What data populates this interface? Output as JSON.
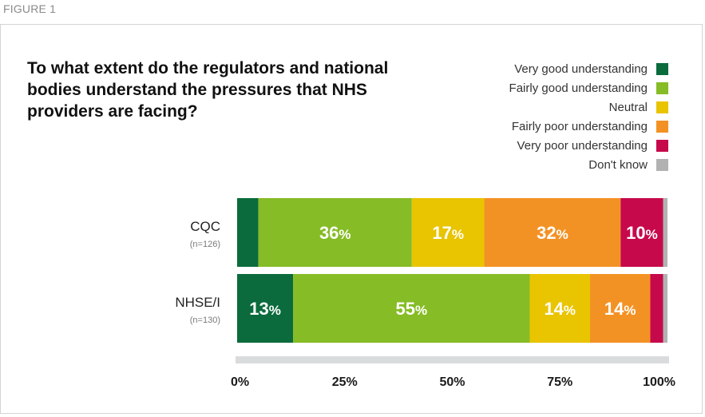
{
  "figure_label": "FIGURE 1",
  "chart_data": {
    "type": "bar",
    "orientation": "horizontal-stacked-100",
    "title": "To what extent do the regulators and national bodies understand the pressures that NHS providers are facing?",
    "categories": [
      {
        "name": "CQC",
        "n": "(n=126)"
      },
      {
        "name": "NHSE/I",
        "n": "(n=130)"
      }
    ],
    "series": [
      {
        "name": "Very good understanding",
        "color": "#0b6b3c",
        "values": [
          5,
          13
        ],
        "labels": [
          "",
          "13%"
        ]
      },
      {
        "name": "Fairly good understanding",
        "color": "#86bc25",
        "values": [
          36,
          55
        ],
        "labels": [
          "36%",
          "55%"
        ]
      },
      {
        "name": "Neutral",
        "color": "#e9c400",
        "values": [
          17,
          14
        ],
        "labels": [
          "17%",
          "14%"
        ]
      },
      {
        "name": "Fairly poor understanding",
        "color": "#f39224",
        "values": [
          32,
          14
        ],
        "labels": [
          "32%",
          "14%"
        ]
      },
      {
        "name": "Very poor understanding",
        "color": "#c6094b",
        "values": [
          10,
          3
        ],
        "labels": [
          "10%",
          ""
        ]
      },
      {
        "name": "Don't know",
        "color": "#b2b2b2",
        "values": [
          1,
          1
        ],
        "labels": [
          "",
          ""
        ]
      }
    ],
    "x_ticks": [
      "0%",
      "25%",
      "50%",
      "75%",
      "100%"
    ],
    "xlim": [
      0,
      100
    ],
    "legend_position": "top-right",
    "grid": false
  }
}
